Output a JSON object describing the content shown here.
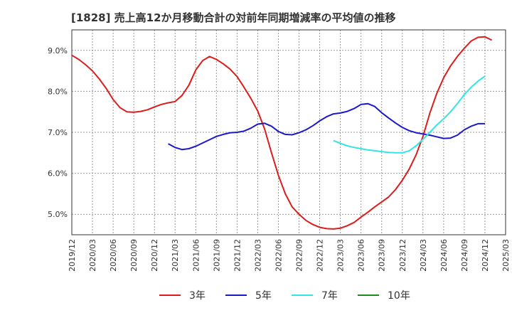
{
  "title": "[1828]  売上高12か月移動合計の対前年同期増減率の平均値の推移",
  "chart_data": {
    "type": "line",
    "title": "[1828]  売上高12か月移動合計の対前年同期増減率の平均値の推移",
    "xlabel": "",
    "ylabel": "",
    "x_range": [
      "2019/12",
      "2025/03"
    ],
    "ylim": [
      4.5,
      9.5
    ],
    "y_ticks": [
      5.0,
      6.0,
      7.0,
      8.0,
      9.0
    ],
    "y_tick_labels": [
      "5.0%",
      "6.0%",
      "7.0%",
      "8.0%",
      "9.0%"
    ],
    "x_ticks": [
      "2019/12",
      "2020/03",
      "2020/06",
      "2020/09",
      "2020/12",
      "2021/03",
      "2021/06",
      "2021/09",
      "2021/12",
      "2022/03",
      "2022/06",
      "2022/09",
      "2022/12",
      "2023/03",
      "2023/06",
      "2023/09",
      "2023/12",
      "2024/03",
      "2024/06",
      "2024/09",
      "2024/12",
      "2025/03"
    ],
    "grid": true,
    "legend_position": "bottom",
    "series": [
      {
        "name": "3年",
        "color": "#dd1c1c",
        "points": [
          [
            "2019/12",
            8.88
          ],
          [
            "2020/01",
            8.78
          ],
          [
            "2020/02",
            8.65
          ],
          [
            "2020/03",
            8.5
          ],
          [
            "2020/04",
            8.3
          ],
          [
            "2020/05",
            8.07
          ],
          [
            "2020/06",
            7.8
          ],
          [
            "2020/07",
            7.6
          ],
          [
            "2020/08",
            7.5
          ],
          [
            "2020/09",
            7.49
          ],
          [
            "2020/10",
            7.51
          ],
          [
            "2020/11",
            7.55
          ],
          [
            "2020/12",
            7.62
          ],
          [
            "2021/01",
            7.68
          ],
          [
            "2021/02",
            7.72
          ],
          [
            "2021/03",
            7.75
          ],
          [
            "2021/04",
            7.9
          ],
          [
            "2021/05",
            8.15
          ],
          [
            "2021/06",
            8.52
          ],
          [
            "2021/07",
            8.75
          ],
          [
            "2021/08",
            8.85
          ],
          [
            "2021/09",
            8.78
          ],
          [
            "2021/10",
            8.67
          ],
          [
            "2021/11",
            8.54
          ],
          [
            "2021/12",
            8.36
          ],
          [
            "2022/01",
            8.1
          ],
          [
            "2022/02",
            7.83
          ],
          [
            "2022/03",
            7.52
          ],
          [
            "2022/04",
            7.08
          ],
          [
            "2022/05",
            6.5
          ],
          [
            "2022/06",
            5.95
          ],
          [
            "2022/07",
            5.5
          ],
          [
            "2022/08",
            5.18
          ],
          [
            "2022/09",
            5.0
          ],
          [
            "2022/10",
            4.85
          ],
          [
            "2022/11",
            4.75
          ],
          [
            "2022/12",
            4.68
          ],
          [
            "2023/01",
            4.65
          ],
          [
            "2023/02",
            4.64
          ],
          [
            "2023/03",
            4.66
          ],
          [
            "2023/04",
            4.72
          ],
          [
            "2023/05",
            4.8
          ],
          [
            "2023/06",
            4.93
          ],
          [
            "2023/07",
            5.05
          ],
          [
            "2023/08",
            5.18
          ],
          [
            "2023/09",
            5.3
          ],
          [
            "2023/10",
            5.42
          ],
          [
            "2023/11",
            5.6
          ],
          [
            "2023/12",
            5.83
          ],
          [
            "2024/01",
            6.1
          ],
          [
            "2024/02",
            6.45
          ],
          [
            "2024/03",
            6.9
          ],
          [
            "2024/04",
            7.47
          ],
          [
            "2024/05",
            7.95
          ],
          [
            "2024/06",
            8.33
          ],
          [
            "2024/07",
            8.62
          ],
          [
            "2024/08",
            8.85
          ],
          [
            "2024/09",
            9.05
          ],
          [
            "2024/10",
            9.23
          ],
          [
            "2024/11",
            9.32
          ],
          [
            "2024/12",
            9.33
          ],
          [
            "2025/01",
            9.25
          ]
        ]
      },
      {
        "name": "5年",
        "color": "#1a1ac8",
        "points": [
          [
            "2021/02",
            6.72
          ],
          [
            "2021/03",
            6.63
          ],
          [
            "2021/04",
            6.58
          ],
          [
            "2021/05",
            6.6
          ],
          [
            "2021/06",
            6.66
          ],
          [
            "2021/07",
            6.74
          ],
          [
            "2021/08",
            6.82
          ],
          [
            "2021/09",
            6.9
          ],
          [
            "2021/10",
            6.95
          ],
          [
            "2021/11",
            6.99
          ],
          [
            "2021/12",
            7.0
          ],
          [
            "2022/01",
            7.03
          ],
          [
            "2022/02",
            7.1
          ],
          [
            "2022/03",
            7.2
          ],
          [
            "2022/04",
            7.22
          ],
          [
            "2022/05",
            7.15
          ],
          [
            "2022/06",
            7.02
          ],
          [
            "2022/07",
            6.95
          ],
          [
            "2022/08",
            6.94
          ],
          [
            "2022/09",
            6.99
          ],
          [
            "2022/10",
            7.06
          ],
          [
            "2022/11",
            7.16
          ],
          [
            "2022/12",
            7.28
          ],
          [
            "2023/01",
            7.38
          ],
          [
            "2023/02",
            7.45
          ],
          [
            "2023/03",
            7.47
          ],
          [
            "2023/04",
            7.51
          ],
          [
            "2023/05",
            7.58
          ],
          [
            "2023/06",
            7.68
          ],
          [
            "2023/07",
            7.7
          ],
          [
            "2023/08",
            7.63
          ],
          [
            "2023/09",
            7.48
          ],
          [
            "2023/10",
            7.35
          ],
          [
            "2023/11",
            7.23
          ],
          [
            "2023/12",
            7.12
          ],
          [
            "2024/01",
            7.04
          ],
          [
            "2024/02",
            6.99
          ],
          [
            "2024/03",
            6.96
          ],
          [
            "2024/04",
            6.93
          ],
          [
            "2024/05",
            6.89
          ],
          [
            "2024/06",
            6.85
          ],
          [
            "2024/07",
            6.86
          ],
          [
            "2024/08",
            6.93
          ],
          [
            "2024/09",
            7.06
          ],
          [
            "2024/10",
            7.15
          ],
          [
            "2024/11",
            7.21
          ],
          [
            "2024/12",
            7.21
          ]
        ]
      },
      {
        "name": "7年",
        "color": "#33e5e5",
        "points": [
          [
            "2023/02",
            6.8
          ],
          [
            "2023/03",
            6.73
          ],
          [
            "2023/04",
            6.67
          ],
          [
            "2023/05",
            6.63
          ],
          [
            "2023/06",
            6.6
          ],
          [
            "2023/07",
            6.57
          ],
          [
            "2023/08",
            6.55
          ],
          [
            "2023/09",
            6.53
          ],
          [
            "2023/10",
            6.51
          ],
          [
            "2023/11",
            6.5
          ],
          [
            "2023/12",
            6.5
          ],
          [
            "2024/01",
            6.55
          ],
          [
            "2024/02",
            6.67
          ],
          [
            "2024/03",
            6.83
          ],
          [
            "2024/04",
            7.0
          ],
          [
            "2024/05",
            7.18
          ],
          [
            "2024/06",
            7.33
          ],
          [
            "2024/07",
            7.5
          ],
          [
            "2024/08",
            7.7
          ],
          [
            "2024/09",
            7.92
          ],
          [
            "2024/10",
            8.1
          ],
          [
            "2024/11",
            8.25
          ],
          [
            "2024/12",
            8.37
          ]
        ]
      },
      {
        "name": "10年",
        "color": "#1e8c1e",
        "points": []
      }
    ]
  }
}
